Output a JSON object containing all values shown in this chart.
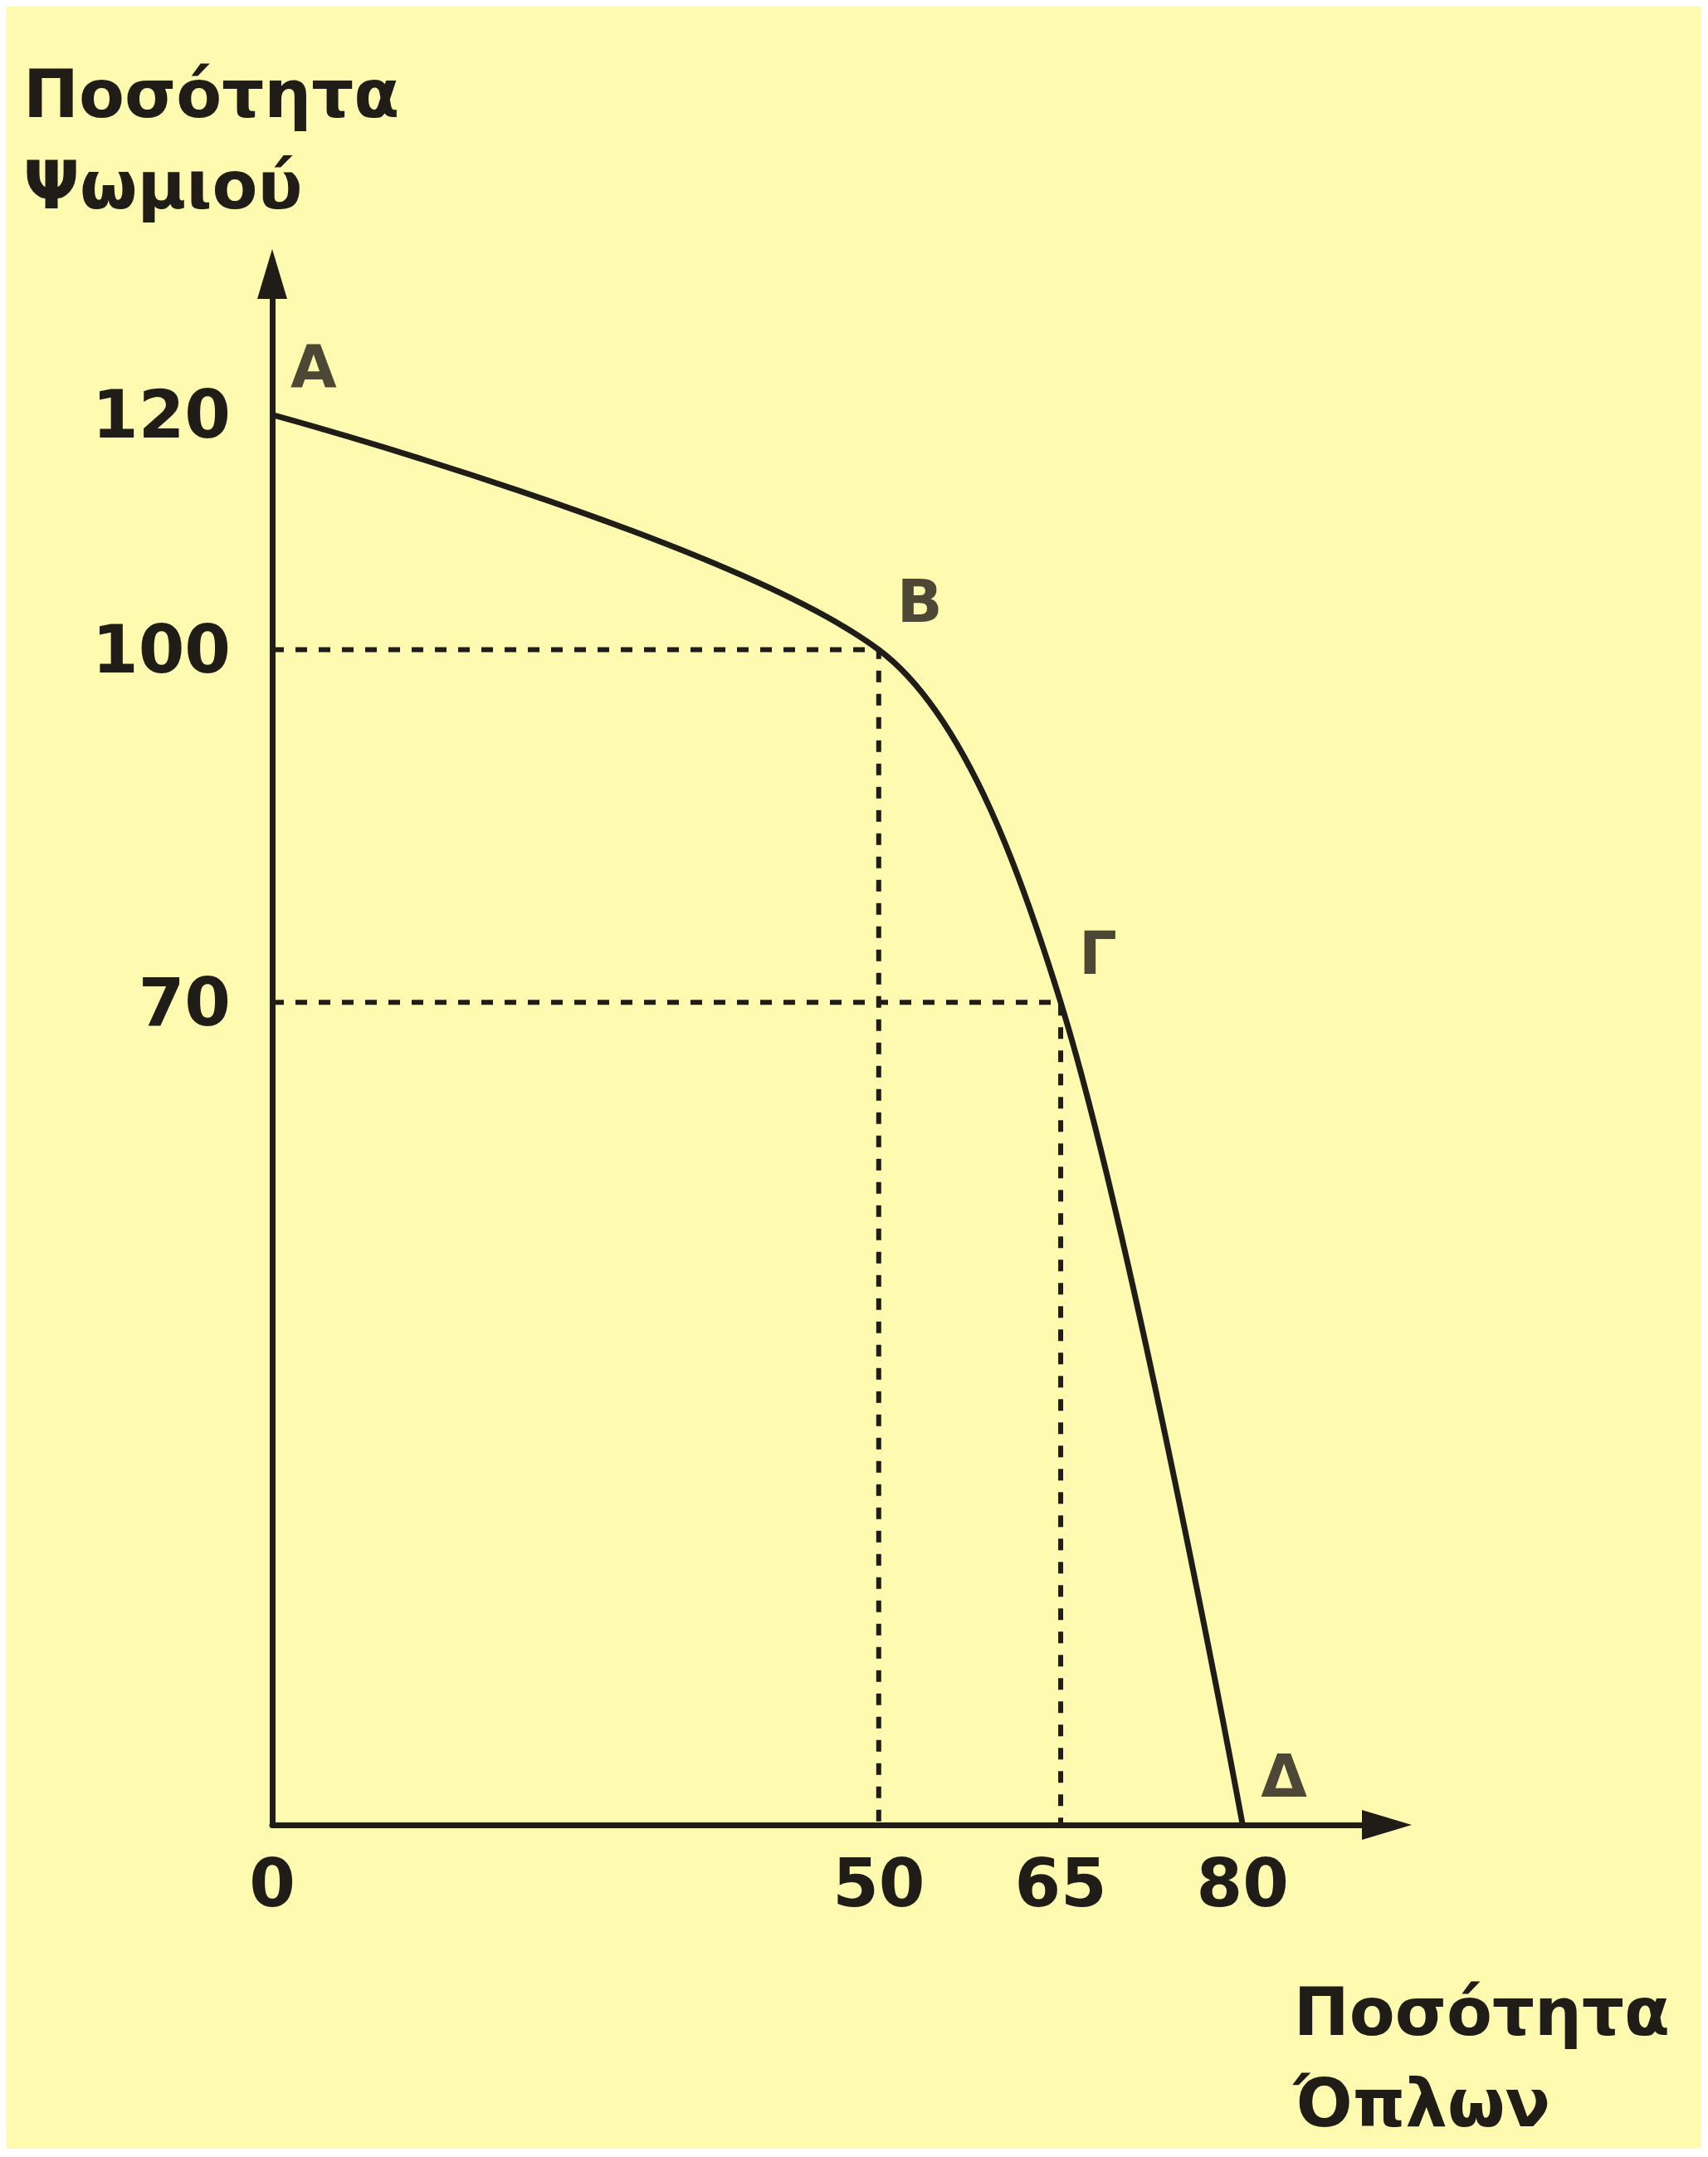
{
  "chart_data": {
    "type": "line",
    "xlabel": "Ποσότητα Όπλων",
    "ylabel": "Ποσότητα Ψωμιού",
    "xlim": [
      0,
      90
    ],
    "ylim": [
      0,
      130
    ],
    "xticks": [
      0,
      50,
      65,
      80
    ],
    "yticks": [
      70,
      100,
      120
    ],
    "grid": false,
    "marker": "none",
    "series": [
      {
        "color": "#201c17",
        "x": [
          0,
          50,
          65,
          80
        ],
        "values": [
          120,
          100,
          70,
          0
        ],
        "line_style": "solid"
      },
      {
        "type": "line",
        "color": "#201c17",
        "x": [
          0,
          50,
          50
        ],
        "values": [
          100,
          100,
          0
        ],
        "line_style": "dashed"
      },
      {
        "type": "line",
        "color": "#201c17",
        "x": [
          0,
          65,
          65
        ],
        "values": [
          70,
          70,
          0
        ],
        "line_style": "dashed"
      }
    ],
    "annotations": [
      {
        "text": "Α",
        "x": 0,
        "y": 120
      },
      {
        "text": "Β",
        "x": 50,
        "y": 100
      },
      {
        "text": "Γ",
        "x": 65,
        "y": 70
      },
      {
        "text": "Δ",
        "x": 80,
        "y": 0
      }
    ]
  }
}
